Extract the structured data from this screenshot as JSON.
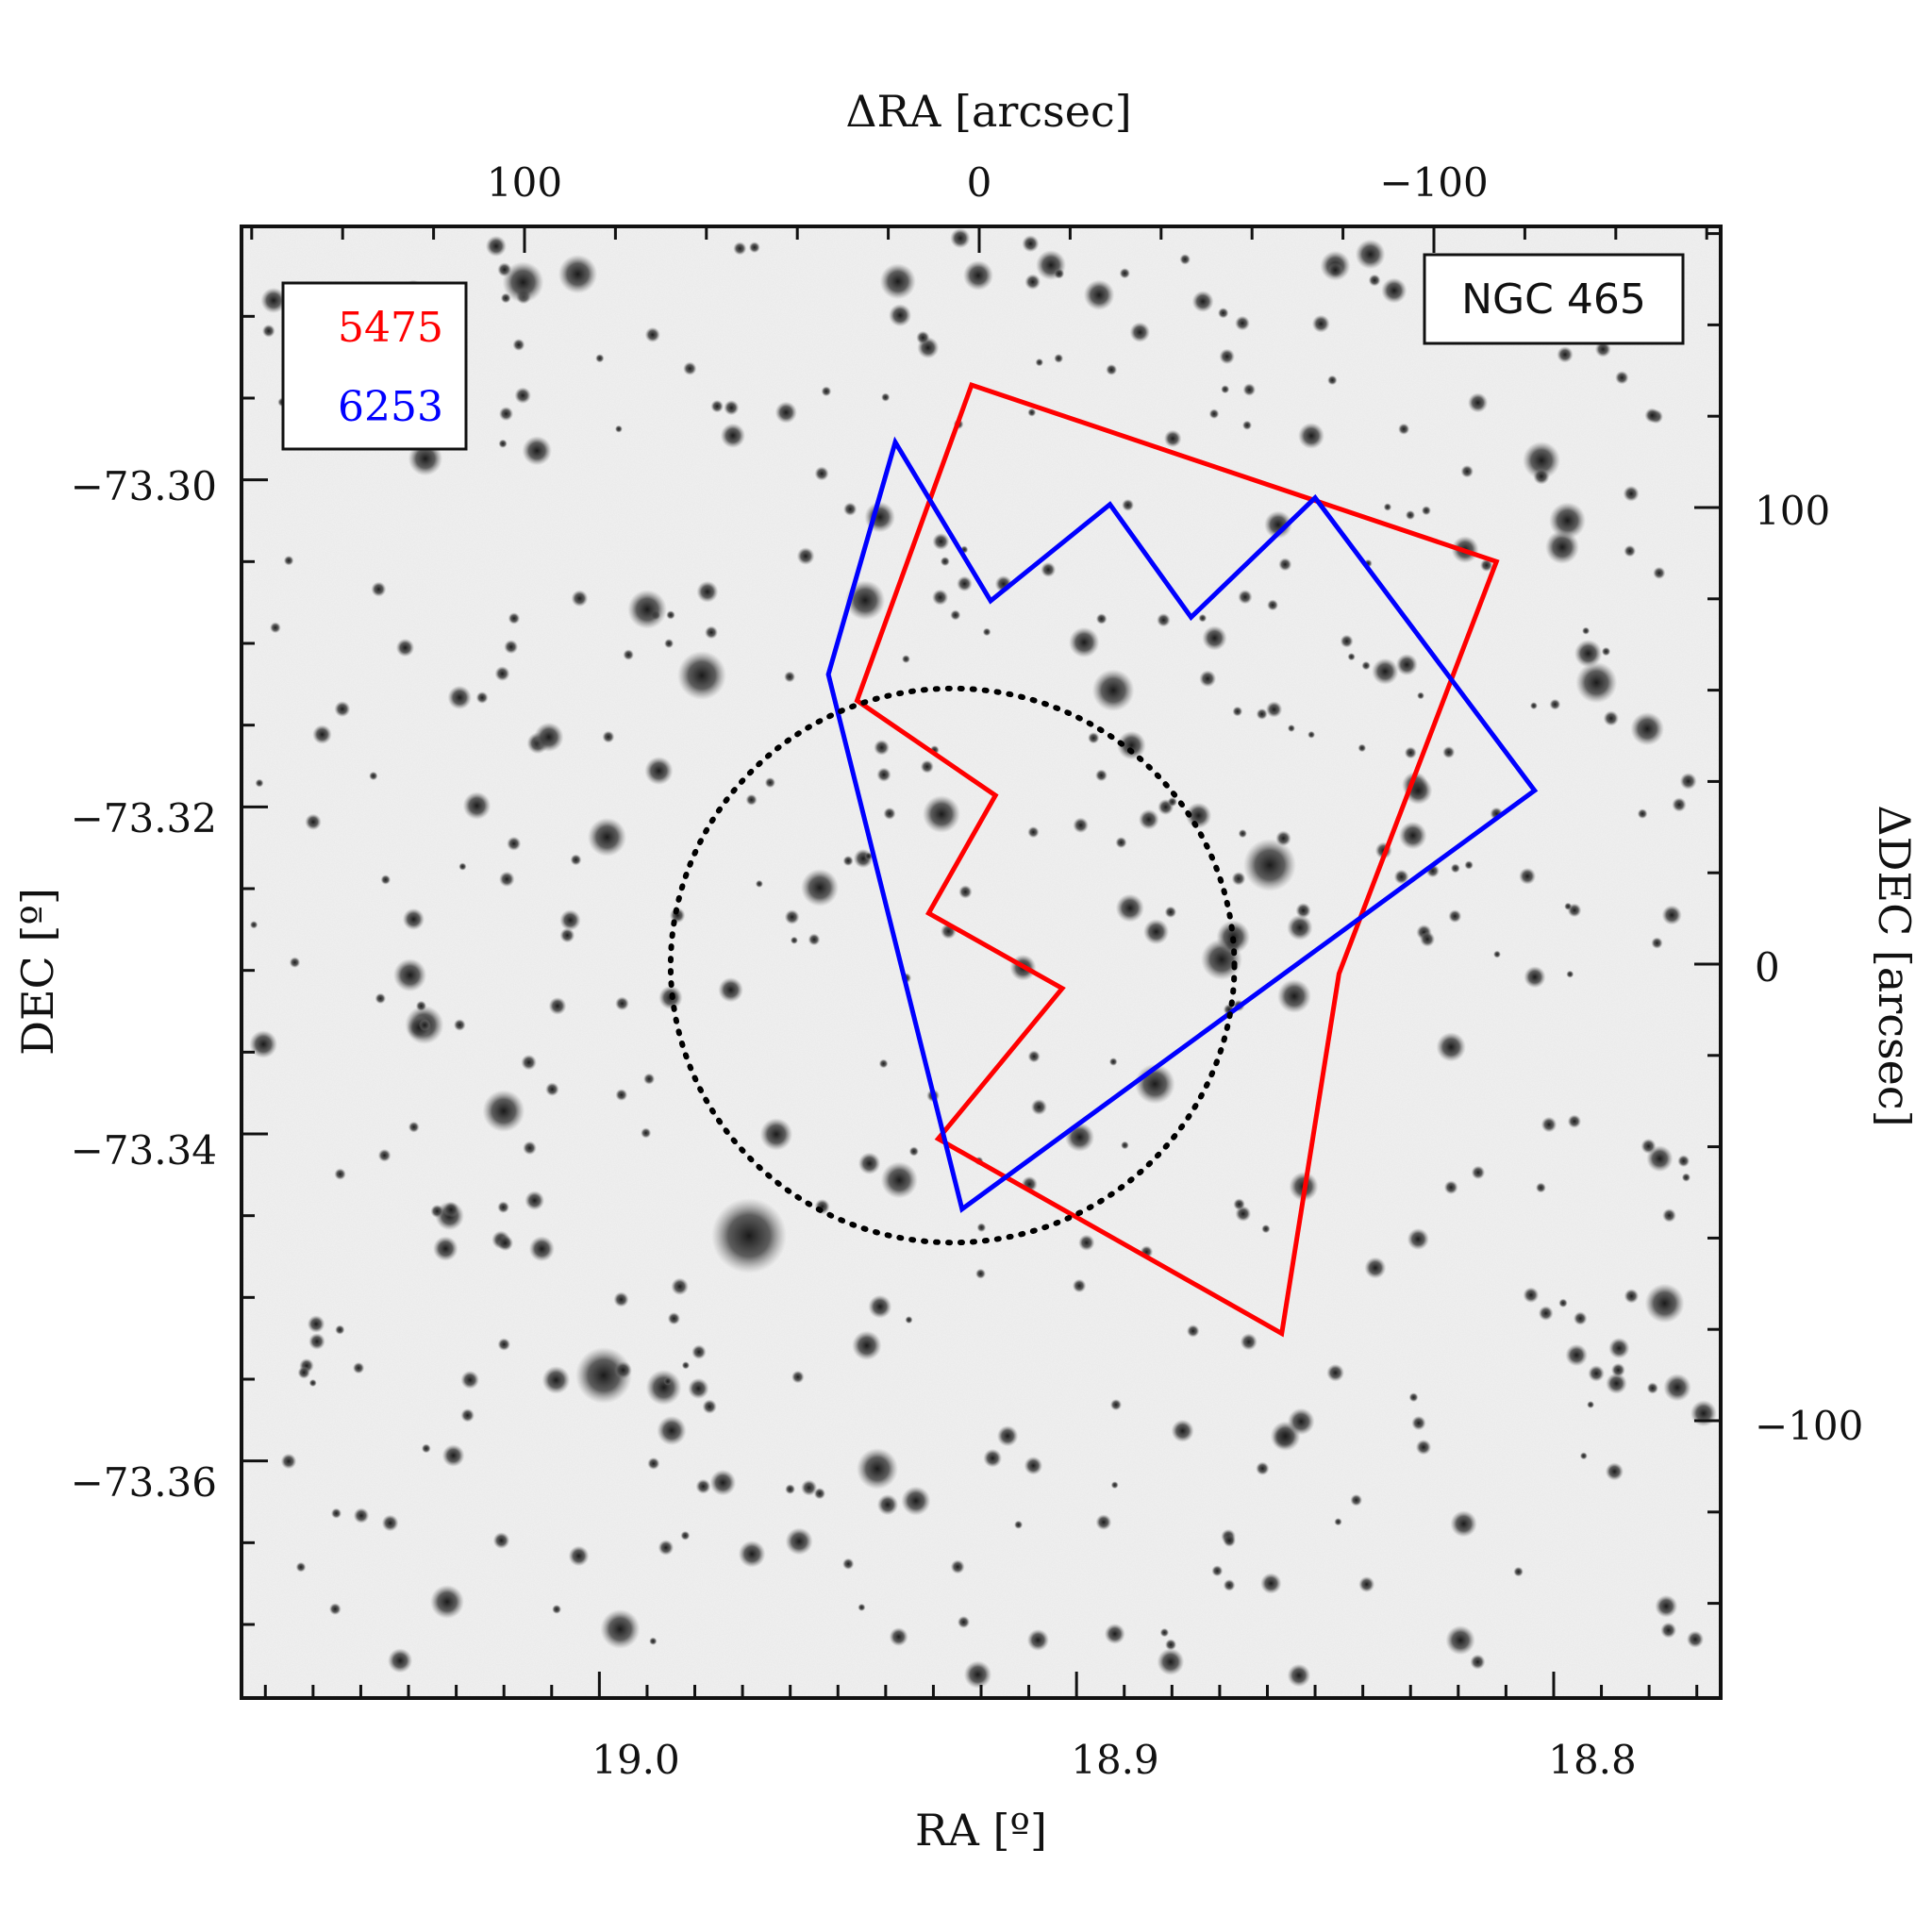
{
  "figure": {
    "cluster_name": "NGC 465",
    "legend": [
      {
        "label": "5475",
        "color": "#ff0000"
      },
      {
        "label": "6253",
        "color": "#0000ff"
      }
    ],
    "circle_style": "dotted"
  },
  "chart_data": {
    "type": "image",
    "background": "stellar field (grayscale sky image)",
    "axes": {
      "bottom": {
        "label": "RA [º]",
        "ticks": [
          "19.0",
          "18.9",
          "18.8"
        ],
        "range": [
          19.075,
          18.765
        ]
      },
      "left": {
        "label": "DEC [º]",
        "ticks": [
          "−73.30",
          "−73.32",
          "−73.34",
          "−73.36"
        ],
        "range": [
          -73.3745,
          -73.2845
        ]
      },
      "top": {
        "label": "ΔRA [arcsec]",
        "ticks": [
          "100",
          "0",
          "−100"
        ]
      },
      "right": {
        "label": "ΔDEC [arcsec]",
        "ticks": [
          "100",
          "0",
          "−100"
        ]
      }
    },
    "footprints": [
      {
        "name": "5475",
        "color": "#ff0000",
        "points_radec": [
          [
            18.922,
            -73.2942
          ],
          [
            18.812,
            -73.305
          ],
          [
            18.845,
            -73.3302
          ],
          [
            18.857,
            -73.3522
          ],
          [
            18.929,
            -73.3403
          ],
          [
            18.903,
            -73.3311
          ],
          [
            18.931,
            -73.3265
          ],
          [
            18.917,
            -73.3193
          ],
          [
            18.946,
            -73.3135
          ]
        ]
      },
      {
        "name": "6253",
        "color": "#0000ff",
        "points_radec": [
          [
            18.938,
            -73.2977
          ],
          [
            18.918,
            -73.3074
          ],
          [
            18.893,
            -73.3015
          ],
          [
            18.876,
            -73.3084
          ],
          [
            18.85,
            -73.3011
          ],
          [
            18.804,
            -73.319
          ],
          [
            18.924,
            -73.3446
          ],
          [
            18.952,
            -73.3119
          ]
        ]
      }
    ],
    "center_circle": {
      "ra": 18.926,
      "dec": -73.3297,
      "radius_arcsec": 61
    }
  }
}
